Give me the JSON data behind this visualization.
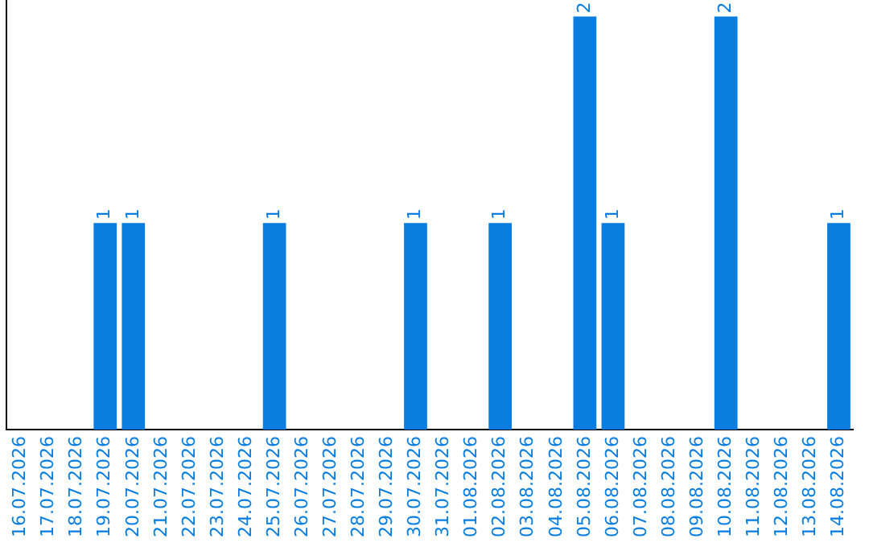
{
  "chart_data": {
    "type": "bar",
    "categories": [
      "16.07.2026",
      "17.07.2026",
      "18.07.2026",
      "19.07.2026",
      "20.07.2026",
      "21.07.2026",
      "22.07.2026",
      "23.07.2026",
      "24.07.2026",
      "25.07.2026",
      "26.07.2026",
      "27.07.2026",
      "28.07.2026",
      "29.07.2026",
      "30.07.2026",
      "31.07.2026",
      "01.08.2026",
      "02.08.2026",
      "03.08.2026",
      "04.08.2026",
      "05.08.2026",
      "06.08.2026",
      "07.08.2026",
      "08.08.2026",
      "09.08.2026",
      "10.08.2026",
      "11.08.2026",
      "12.08.2026",
      "13.08.2026",
      "14.08.2026"
    ],
    "values": [
      0,
      0,
      0,
      1,
      1,
      0,
      0,
      0,
      0,
      1,
      0,
      0,
      0,
      0,
      1,
      0,
      0,
      1,
      0,
      0,
      2,
      1,
      0,
      0,
      0,
      2,
      0,
      0,
      0,
      1
    ],
    "value_labels": [
      null,
      null,
      null,
      "1",
      "1",
      null,
      null,
      null,
      null,
      "1",
      null,
      null,
      null,
      null,
      "1",
      null,
      null,
      "1",
      null,
      null,
      "2",
      "1",
      null,
      null,
      null,
      "2",
      null,
      null,
      null,
      "1"
    ],
    "color": "#0a7ee0",
    "ylim": [
      0,
      2.08
    ],
    "grid": false,
    "legend": false,
    "tick_labels": "x"
  }
}
